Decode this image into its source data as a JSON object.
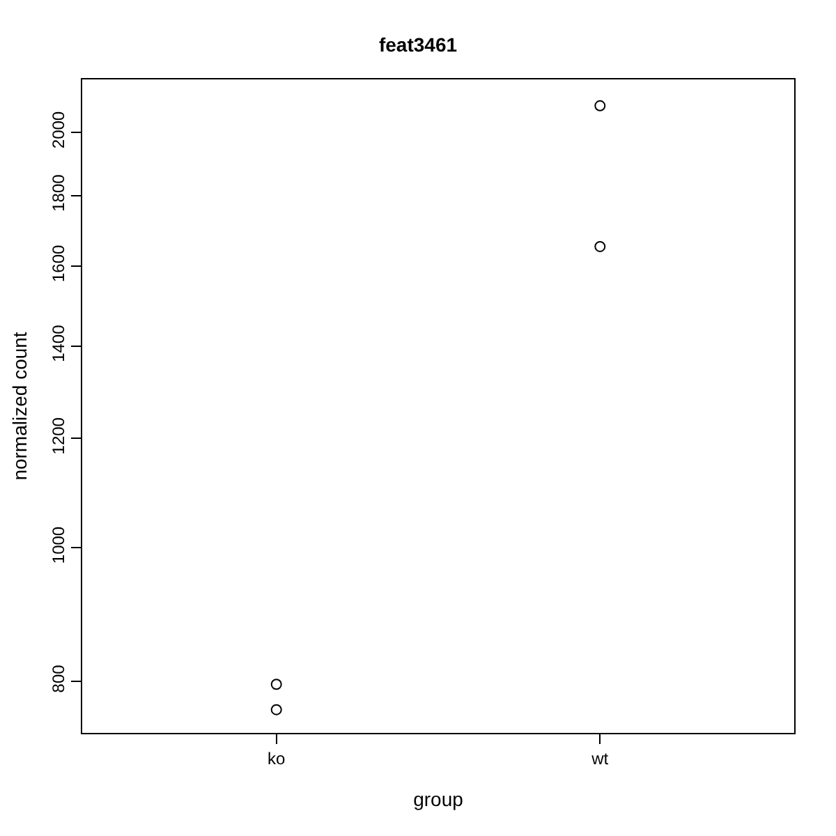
{
  "chart_data": {
    "type": "scatter",
    "title": "feat3461",
    "xlabel": "group",
    "ylabel": "normalized count",
    "categories": [
      "ko",
      "wt"
    ],
    "series": [
      {
        "color": "#000000",
        "x": [
          "ko",
          "ko",
          "wt",
          "wt"
        ],
        "values": [
          763,
          796,
          1653,
          2091
        ]
      }
    ],
    "ylim": [
      734,
      2185
    ],
    "yticks": [
      800,
      1000,
      1200,
      1400,
      1600,
      1800,
      2000
    ],
    "log": "y",
    "marker": "circle"
  }
}
